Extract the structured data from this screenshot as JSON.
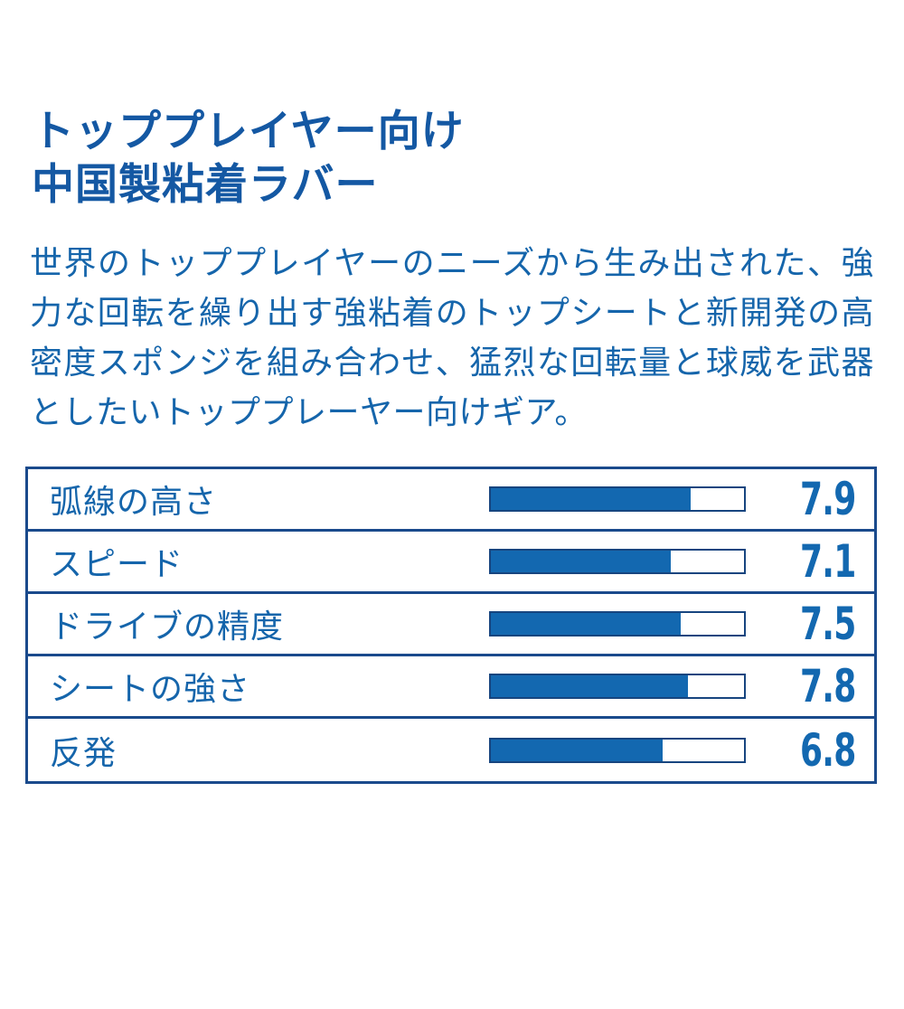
{
  "title": {
    "line1": "トッププレイヤー向け",
    "line2": "中国製粘着ラバー"
  },
  "description": "世界のトッププレイヤーのニーズから生み出された、強力な回転を繰り出す強粘着のトップシートと新開発の高密度スポンジを組み合わせ、猛烈な回転量と球威を武器としたいトッププレーヤー向けギア。",
  "chart_data": {
    "type": "bar",
    "orientation": "horizontal",
    "categories": [
      "弧線の高さ",
      "スピード",
      "ドライブの精度",
      "シートの強さ",
      "反発"
    ],
    "values": [
      7.9,
      7.1,
      7.5,
      7.8,
      6.8
    ],
    "value_labels": [
      "7.9",
      "7.1",
      "7.5",
      "7.8",
      "6.8"
    ],
    "value_max": 10,
    "legend": "none",
    "grid": false
  },
  "colors": {
    "text_blue": "#1565ab",
    "title_blue": "#1458a3",
    "bar_fill": "#1368b0",
    "bar_border": "#17457f",
    "table_border": "#1a4a8c",
    "value_text": "#1368b0",
    "background": "#ffffff"
  }
}
